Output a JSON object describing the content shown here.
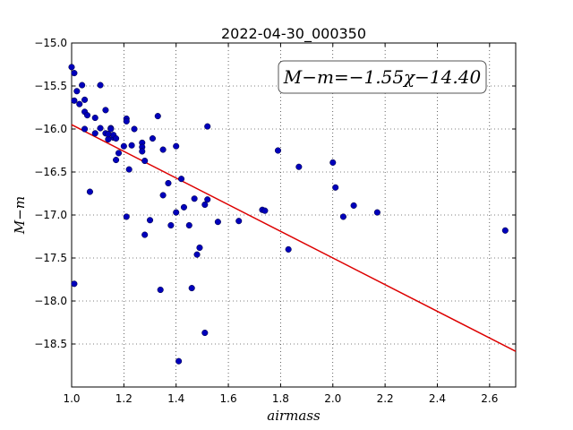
{
  "chart_data": {
    "type": "scatter",
    "title": "2022-04-30_000350",
    "xlabel": "airmass",
    "ylabel": "M−m",
    "xlim": [
      1.0,
      2.7
    ],
    "ylim": [
      -15.0,
      -19.0
    ],
    "y_inverted": true,
    "grid": true,
    "xticks": [
      "1.0",
      "1.2",
      "1.4",
      "1.6",
      "1.8",
      "2.0",
      "2.2",
      "2.4",
      "2.6"
    ],
    "yticks": [
      "−15.0",
      "−15.5",
      "−16.0",
      "−16.5",
      "−17.0",
      "−17.5",
      "−18.0",
      "−18.5"
    ],
    "fit": {
      "slope": -1.55,
      "intercept": -14.4,
      "label": "M−m=−1.55χ−14.40",
      "color": "#dd0000"
    },
    "marker_color": "#0000bb",
    "x": [
      1.0,
      1.01,
      1.02,
      1.01,
      1.04,
      1.05,
      1.03,
      1.05,
      1.06,
      1.05,
      1.11,
      1.09,
      1.11,
      1.13,
      1.15,
      1.14,
      1.15,
      1.16,
      1.17,
      1.14,
      1.13,
      1.16,
      1.09,
      1.14,
      1.17,
      1.18,
      1.21,
      1.21,
      1.2,
      1.23,
      1.24,
      1.27,
      1.27,
      1.27,
      1.28,
      1.33,
      1.31,
      1.35,
      1.4,
      1.22,
      1.07,
      1.01,
      1.21,
      1.3,
      1.28,
      1.37,
      1.35,
      1.42,
      1.43,
      1.47,
      1.4,
      1.38,
      1.45,
      1.51,
      1.52,
      1.52,
      1.56,
      1.64,
      1.73,
      1.74,
      1.79,
      1.87,
      2.0,
      2.01,
      2.04,
      2.08,
      2.17,
      1.83,
      1.49,
      1.48,
      1.34,
      1.46,
      1.51,
      1.41,
      2.66
    ],
    "y": [
      -15.28,
      -15.35,
      -15.56,
      -15.67,
      -15.49,
      -15.66,
      -15.71,
      -15.8,
      -15.84,
      -16.0,
      -15.49,
      -15.87,
      -15.99,
      -15.78,
      -15.99,
      -16.06,
      -16.0,
      -16.1,
      -16.36,
      -16.12,
      -16.05,
      -16.07,
      -16.05,
      -16.06,
      -16.11,
      -16.28,
      -15.88,
      -15.91,
      -16.2,
      -16.19,
      -16.0,
      -16.16,
      -16.21,
      -16.26,
      -16.37,
      -15.85,
      -16.11,
      -16.24,
      -16.2,
      -16.47,
      -16.73,
      -17.8,
      -17.02,
      -17.06,
      -17.23,
      -16.63,
      -16.77,
      -16.58,
      -16.91,
      -16.81,
      -16.97,
      -17.12,
      -17.12,
      -16.88,
      -16.82,
      -15.97,
      -17.08,
      -17.07,
      -16.94,
      -16.95,
      -16.25,
      -16.44,
      -16.39,
      -16.68,
      -17.02,
      -16.89,
      -16.97,
      -17.4,
      -17.38,
      -17.46,
      -17.87,
      -17.85,
      -18.37,
      -18.7,
      -17.18
    ]
  }
}
